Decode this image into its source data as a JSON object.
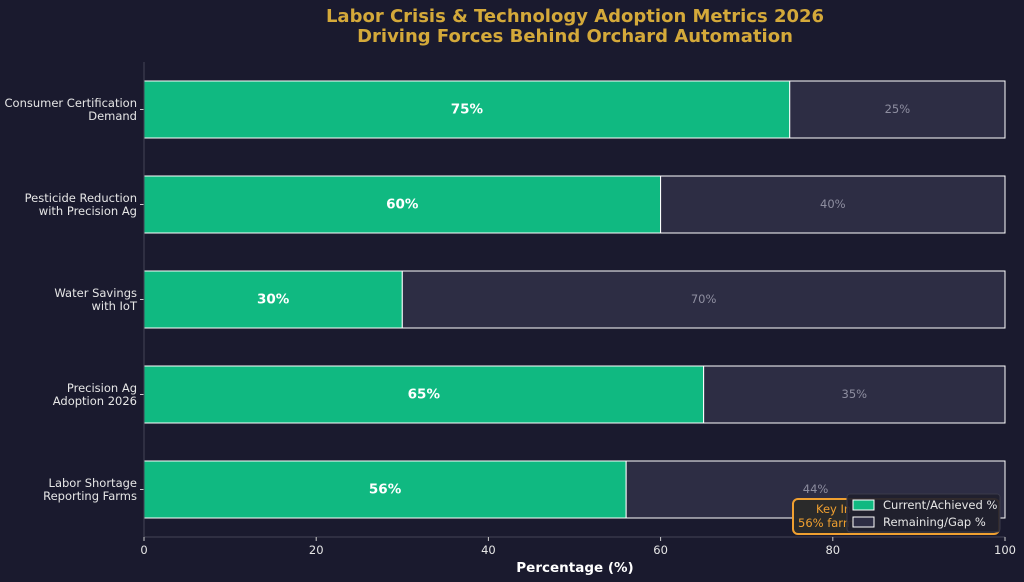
{
  "chart_data": {
    "type": "bar",
    "orientation": "horizontal",
    "stacked": true,
    "title": "Labor Crisis & Technology Adoption Metrics 2026",
    "subtitle": "Driving Forces Behind Orchard Automation",
    "xlabel": "Percentage (%)",
    "ylabel": "",
    "xlim": [
      0,
      100
    ],
    "xticks": [
      "0",
      "20",
      "40",
      "60",
      "80",
      "100"
    ],
    "categories": [
      [
        "Consumer Certification",
        "Demand"
      ],
      [
        "Pesticide Reduction",
        "with Precision Ag"
      ],
      [
        "Water Savings",
        "with IoT"
      ],
      [
        "Precision Ag",
        "Adoption 2026"
      ],
      [
        "Labor Shortage",
        "Reporting Farms"
      ]
    ],
    "series": [
      {
        "name": "Current/Achieved %",
        "values": [
          75,
          60,
          30,
          65,
          56
        ],
        "labels": [
          "75%",
          "60%",
          "30%",
          "65%",
          "56%"
        ],
        "color": "#10b981"
      },
      {
        "name": "Remaining/Gap %",
        "values": [
          25,
          40,
          70,
          35,
          44
        ],
        "labels": [
          "25%",
          "40%",
          "70%",
          "35%",
          "44%"
        ],
        "color": "#2d2d44"
      }
    ],
    "legend_position": "bottom-right",
    "annotation": {
      "lines": [
        "Key In",
        "56% farm"
      ],
      "color": "#f0a030"
    },
    "grid": false
  }
}
